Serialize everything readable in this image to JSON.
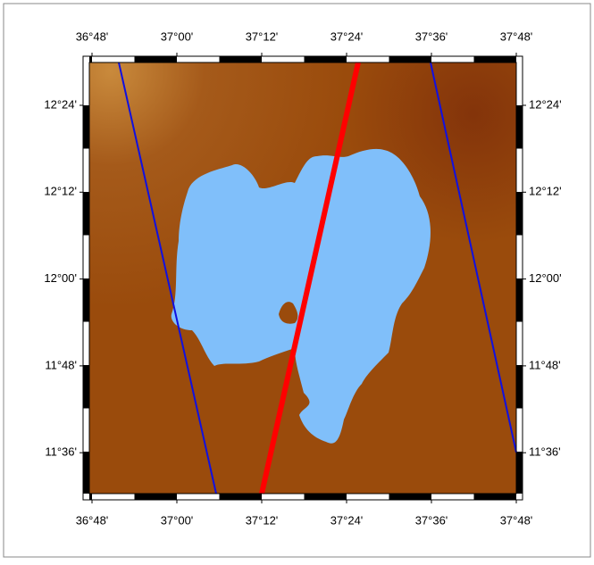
{
  "map": {
    "x_labels": [
      "36°48'",
      "37°00'",
      "37°12'",
      "37°24'",
      "37°36'",
      "37°48'"
    ],
    "y_labels": [
      "12°24'",
      "12°12'",
      "12°00'",
      "11°48'",
      "11°36'"
    ]
  }
}
